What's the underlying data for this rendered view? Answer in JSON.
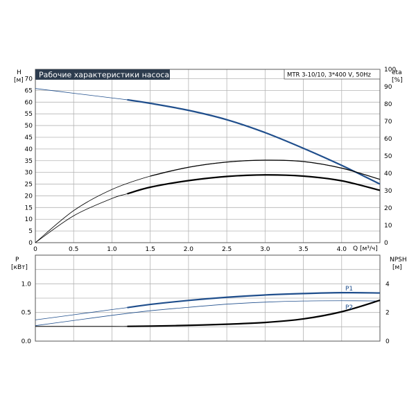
{
  "chart_data": [
    {
      "type": "line",
      "title": "Рабочие характеристики насоса",
      "subtitle": "MTR 3-10/10, 3*400 V, 50Hz",
      "xlabel": "Q [м³/ч]",
      "ylabel_name": "H",
      "ylabel_unit": "[м]",
      "y2label_name": "eta",
      "y2label_unit": "[%]",
      "xlim": [
        0,
        4.5
      ],
      "ylim": [
        0,
        74
      ],
      "y2lim": [
        0,
        100
      ],
      "grid": true,
      "x_ticks": [
        "0",
        "0.5",
        "1.0",
        "1.5",
        "2.0",
        "2.5",
        "3.0",
        "3.5",
        "4.0"
      ],
      "y_ticks": [
        "0",
        "5",
        "10",
        "15",
        "20",
        "25",
        "30",
        "35",
        "40",
        "45",
        "50",
        "55",
        "60",
        "65",
        "70"
      ],
      "y2_ticks": [
        "0",
        "10",
        "20",
        "30",
        "40",
        "50",
        "60",
        "70",
        "80",
        "90",
        "100"
      ],
      "series": [
        {
          "axis": "left",
          "color": "#1f4e8c",
          "x": [
            0,
            0.5,
            1.0,
            1.2,
            1.5,
            2.0,
            2.5,
            3.0,
            3.5,
            4.0,
            4.5
          ],
          "values": [
            65.8,
            63.8,
            61.8,
            61.0,
            59.5,
            56.5,
            52.5,
            47.0,
            40.3,
            33.0,
            25.0
          ]
        },
        {
          "axis": "right",
          "color": "#000000",
          "x": [
            0,
            0.5,
            1.0,
            1.5,
            2.0,
            2.5,
            3.0,
            3.5,
            4.0,
            4.5
          ],
          "values": [
            0,
            18.5,
            30.7,
            38.4,
            43.5,
            46.5,
            47.6,
            46.8,
            43.0,
            36.5
          ]
        },
        {
          "axis": "right",
          "color": "#000000",
          "x": [
            0,
            0.5,
            1.0,
            1.2,
            1.5,
            2.0,
            2.5,
            3.0,
            3.5,
            4.0,
            4.5
          ],
          "values": [
            0,
            15.5,
            25.5,
            28.2,
            32.0,
            35.8,
            38.2,
            39.1,
            38.4,
            35.7,
            30.2
          ]
        }
      ]
    },
    {
      "type": "line",
      "ylabel_name": "P",
      "ylabel_unit": "[кВт]",
      "y2label_name": "NPSH",
      "y2label_unit": "[м]",
      "xlim": [
        0,
        4.5
      ],
      "ylim": [
        0,
        1.5
      ],
      "y2lim": [
        0,
        6
      ],
      "grid": true,
      "y_ticks": [
        "0.0",
        "0.5",
        "1.0"
      ],
      "y2_ticks": [
        "0",
        "2",
        "4"
      ],
      "series": [
        {
          "name": "P1",
          "axis": "left",
          "color": "#1f4e8c",
          "x": [
            0,
            0.5,
            1.0,
            1.2,
            1.5,
            2.0,
            2.5,
            3.0,
            3.5,
            4.0,
            4.5
          ],
          "values": [
            0.37,
            0.46,
            0.55,
            0.585,
            0.64,
            0.71,
            0.765,
            0.805,
            0.83,
            0.845,
            0.84
          ]
        },
        {
          "name": "P2",
          "axis": "left",
          "color": "#1f4e8c",
          "x": [
            0,
            0.5,
            1.0,
            1.5,
            2.0,
            2.5,
            3.0,
            3.5,
            4.0,
            4.5
          ],
          "values": [
            0.27,
            0.36,
            0.45,
            0.53,
            0.59,
            0.645,
            0.68,
            0.7,
            0.705,
            0.7
          ]
        },
        {
          "axis": "right",
          "color": "#000000",
          "x": [
            0,
            1.0,
            1.2,
            1.5,
            2.0,
            2.5,
            3.0,
            3.5,
            4.0,
            4.5
          ],
          "values": [
            1.03,
            1.03,
            1.03,
            1.05,
            1.1,
            1.18,
            1.3,
            1.55,
            2.05,
            2.85
          ]
        }
      ]
    }
  ]
}
